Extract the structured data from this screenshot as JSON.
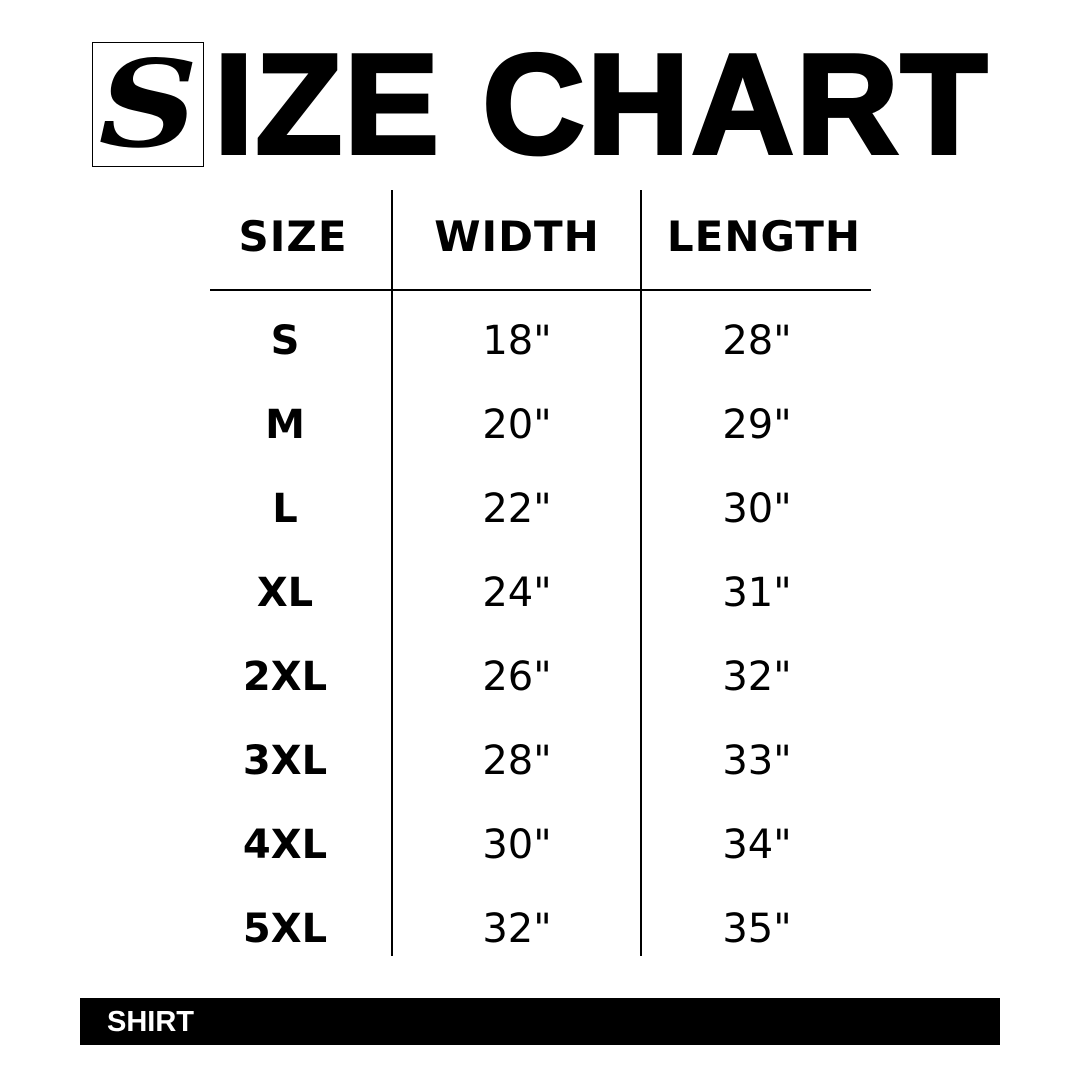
{
  "logo_letter": "S",
  "title": "IZE CHART",
  "headers": [
    "SIZE",
    "WIDTH",
    "LENGTH"
  ],
  "rows": [
    {
      "size": "S",
      "width": "18\"",
      "length": "28\""
    },
    {
      "size": "M",
      "width": "20\"",
      "length": "29\""
    },
    {
      "size": "L",
      "width": "22\"",
      "length": "30\""
    },
    {
      "size": "XL",
      "width": "24\"",
      "length": "31\""
    },
    {
      "size": "2XL",
      "width": "26\"",
      "length": "32\""
    },
    {
      "size": "3XL",
      "width": "28\"",
      "length": "33\""
    },
    {
      "size": "4XL",
      "width": "30\"",
      "length": "34\""
    },
    {
      "size": "5XL",
      "width": "32\"",
      "length": "35\""
    }
  ],
  "footer_label": "SHIRT"
}
